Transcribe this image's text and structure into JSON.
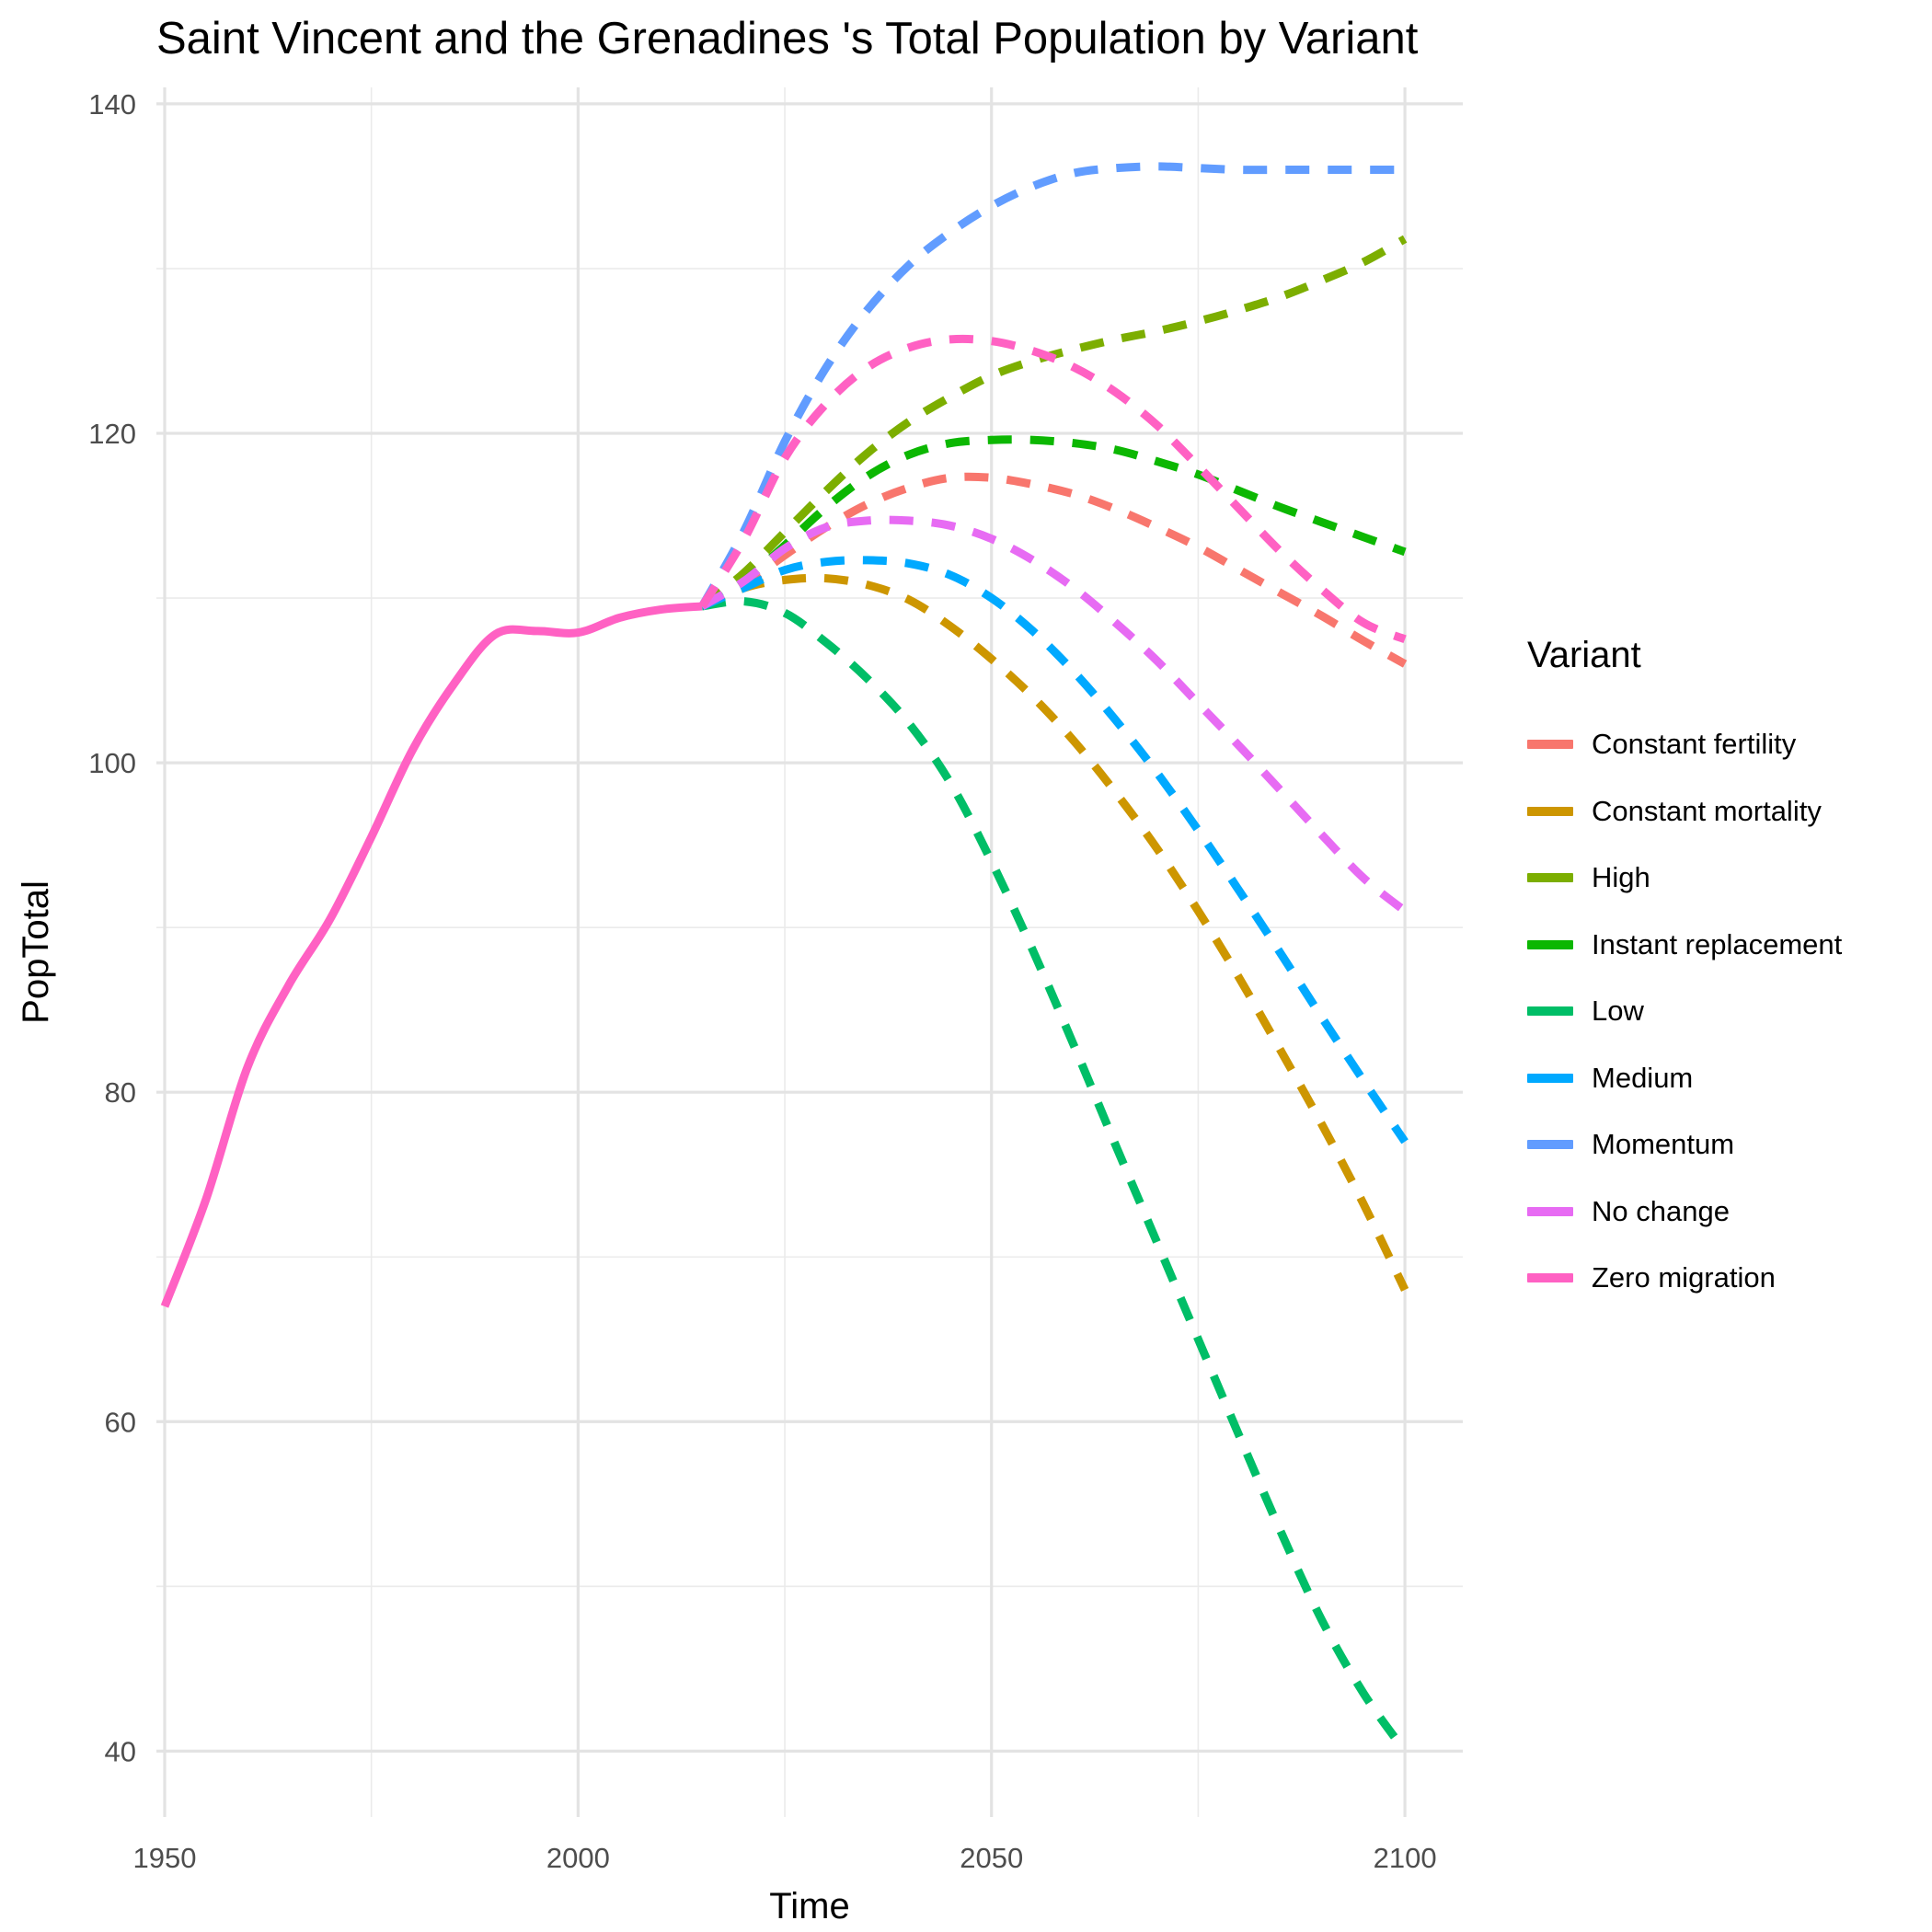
{
  "chart_data": {
    "type": "line",
    "title": "Saint Vincent and the Grenadines 's Total Population by Variant",
    "xlabel": "Time",
    "ylabel": "PopTotal",
    "xlim": [
      1949,
      2107
    ],
    "ylim": [
      36,
      141
    ],
    "x_ticks": [
      1950,
      2000,
      2050,
      2100
    ],
    "y_ticks": [
      40,
      60,
      80,
      100,
      120,
      140
    ],
    "x_tick_labels": [
      "1950",
      "2000",
      "2050",
      "2100"
    ],
    "y_tick_labels": [
      "40",
      "60",
      "80",
      "100",
      "120",
      "140"
    ],
    "grid": true,
    "legend": {
      "title": "Variant",
      "position": "right"
    },
    "historical": {
      "x": [
        1950,
        1955,
        1960,
        1965,
        1970,
        1975,
        1980,
        1985,
        1990,
        1995,
        2000,
        2005,
        2010,
        2015
      ],
      "y": [
        67.0,
        73.5,
        81.5,
        86.5,
        90.5,
        95.5,
        100.8,
        104.8,
        107.8,
        108.0,
        107.9,
        108.8,
        109.3,
        109.5
      ]
    },
    "series": [
      {
        "name": "Constant fertility",
        "color": "#F8766D",
        "x": [
          2015,
          2020,
          2025,
          2030,
          2035,
          2040,
          2045,
          2050,
          2055,
          2060,
          2065,
          2070,
          2075,
          2080,
          2085,
          2090,
          2095,
          2100
        ],
        "y": [
          109.5,
          110.8,
          112.6,
          114.3,
          115.7,
          116.7,
          117.3,
          117.3,
          116.9,
          116.3,
          115.4,
          114.3,
          113.1,
          111.7,
          110.3,
          108.9,
          107.4,
          106.0
        ]
      },
      {
        "name": "Constant mortality",
        "color": "#CD9600",
        "x": [
          2015,
          2020,
          2025,
          2030,
          2035,
          2040,
          2045,
          2050,
          2055,
          2060,
          2065,
          2070,
          2075,
          2080,
          2085,
          2090,
          2095,
          2100
        ],
        "y": [
          109.5,
          110.6,
          111.1,
          111.2,
          110.8,
          109.9,
          108.3,
          106.3,
          104.0,
          101.3,
          98.2,
          94.8,
          91.0,
          86.9,
          82.5,
          78.0,
          73.2,
          68.0
        ]
      },
      {
        "name": "High",
        "color": "#7CAE00",
        "x": [
          2015,
          2020,
          2025,
          2030,
          2035,
          2040,
          2045,
          2050,
          2055,
          2060,
          2065,
          2070,
          2075,
          2080,
          2085,
          2090,
          2095,
          2100
        ],
        "y": [
          109.5,
          111.5,
          114.0,
          116.5,
          118.8,
          120.7,
          122.2,
          123.5,
          124.4,
          125.1,
          125.7,
          126.2,
          126.8,
          127.5,
          128.3,
          129.3,
          130.4,
          131.8
        ]
      },
      {
        "name": "Instant replacement",
        "color": "#0CB702",
        "x": [
          2015,
          2020,
          2025,
          2030,
          2035,
          2040,
          2045,
          2050,
          2055,
          2060,
          2065,
          2070,
          2075,
          2080,
          2085,
          2090,
          2095,
          2100
        ],
        "y": [
          109.5,
          111.0,
          113.2,
          115.5,
          117.4,
          118.7,
          119.4,
          119.6,
          119.6,
          119.4,
          119.0,
          118.3,
          117.5,
          116.5,
          115.5,
          114.6,
          113.7,
          112.8
        ]
      },
      {
        "name": "Low",
        "color": "#00BE67",
        "x": [
          2015,
          2020,
          2025,
          2030,
          2035,
          2040,
          2045,
          2050,
          2055,
          2060,
          2065,
          2070,
          2075,
          2080,
          2085,
          2090,
          2095,
          2100
        ],
        "y": [
          109.5,
          109.8,
          109.1,
          107.3,
          105.1,
          102.4,
          98.8,
          94.0,
          88.6,
          82.8,
          76.8,
          70.9,
          65.0,
          59.1,
          53.3,
          47.9,
          43.5,
          40.0
        ]
      },
      {
        "name": "Medium",
        "color": "#00A9FF",
        "x": [
          2015,
          2020,
          2025,
          2030,
          2035,
          2040,
          2045,
          2050,
          2055,
          2060,
          2065,
          2070,
          2075,
          2080,
          2085,
          2090,
          2095,
          2100
        ],
        "y": [
          109.5,
          110.6,
          111.7,
          112.2,
          112.3,
          112.1,
          111.4,
          110.0,
          108.0,
          105.5,
          102.6,
          99.4,
          95.9,
          92.2,
          88.4,
          84.5,
          80.7,
          77.0
        ]
      },
      {
        "name": "Momentum",
        "color": "#619CFF",
        "x": [
          2015,
          2020,
          2025,
          2030,
          2035,
          2040,
          2045,
          2050,
          2055,
          2060,
          2065,
          2070,
          2075,
          2080,
          2085,
          2090,
          2095,
          2100
        ],
        "y": [
          109.5,
          114.0,
          119.5,
          124.0,
          127.5,
          130.2,
          132.2,
          133.8,
          135.0,
          135.8,
          136.1,
          136.2,
          136.1,
          136.0,
          136.0,
          136.0,
          136.0,
          136.0
        ]
      },
      {
        "name": "No change",
        "color": "#E76BF3",
        "x": [
          2015,
          2020,
          2025,
          2030,
          2035,
          2040,
          2045,
          2050,
          2055,
          2060,
          2065,
          2070,
          2075,
          2080,
          2085,
          2090,
          2095,
          2100
        ],
        "y": [
          109.5,
          111.0,
          113.0,
          114.3,
          114.7,
          114.7,
          114.4,
          113.6,
          112.3,
          110.6,
          108.5,
          106.2,
          103.6,
          101.0,
          98.3,
          95.6,
          93.0,
          91.0
        ]
      },
      {
        "name": "Zero migration",
        "color": "#FF61C3",
        "x": [
          2015,
          2020,
          2025,
          2030,
          2035,
          2040,
          2045,
          2050,
          2055,
          2060,
          2065,
          2070,
          2075,
          2080,
          2085,
          2090,
          2095,
          2100
        ],
        "y": [
          109.5,
          113.5,
          118.5,
          121.8,
          124.0,
          125.2,
          125.7,
          125.6,
          125.0,
          124.0,
          122.5,
          120.5,
          118.0,
          115.4,
          112.8,
          110.5,
          108.5,
          107.5
        ]
      }
    ]
  }
}
